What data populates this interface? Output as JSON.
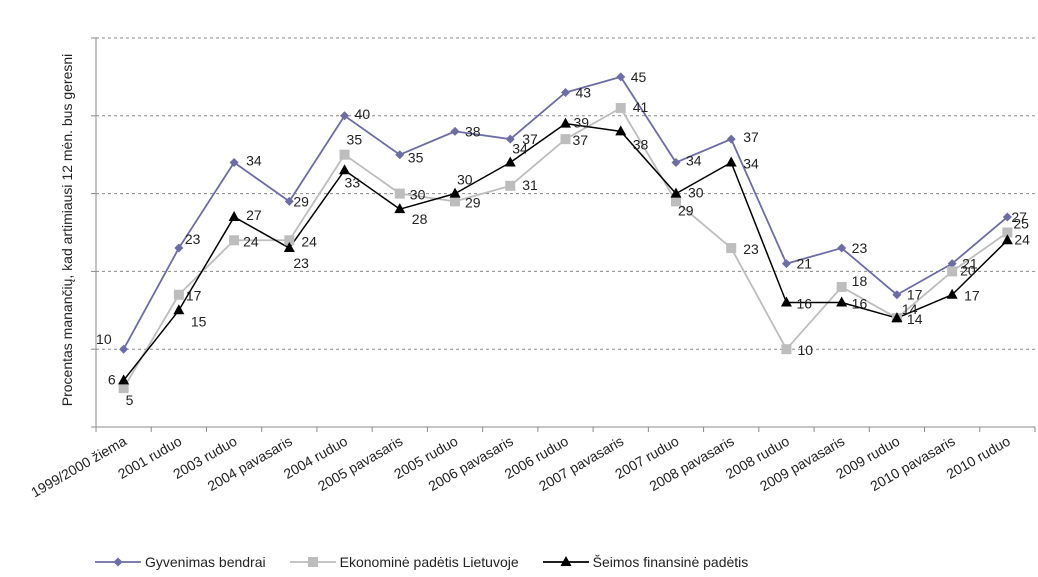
{
  "chart_data": {
    "type": "line",
    "ylabel": "Procentas manančių, kad artimiausi 12 mėn. bus geresni",
    "xlabel": "",
    "title": "",
    "ylim": [
      0,
      50
    ],
    "y_gridlines": [
      0,
      10,
      20,
      30,
      40,
      50
    ],
    "y_tick_labels_shown": false,
    "grid": "dashed horizontal",
    "legend_position": "bottom",
    "categories": [
      "1999/2000 žiema",
      "2001 ruduo",
      "2003 ruduo",
      "2004 pavasaris",
      "2004 ruduo",
      "2005 pavasaris",
      "2005 ruduo",
      "2006 pavasaris",
      "2006 ruduo",
      "2007 pavasaris",
      "2007 ruduo",
      "2008 pavasaris",
      "2008 ruduo",
      "2009 pavasaris",
      "2009 ruduo",
      "2010 pavasaris",
      "2010 ruduo"
    ],
    "series": [
      {
        "name": "Gyvenimas bendrai",
        "color": "#6c6ca6",
        "marker": "diamond",
        "values": [
          10,
          23,
          34,
          29,
          40,
          35,
          38,
          37,
          43,
          45,
          34,
          37,
          21,
          23,
          17,
          21,
          27
        ]
      },
      {
        "name": "Ekonominė padėtis Lietuvoje",
        "color": "#bdbdbd",
        "marker": "square",
        "values": [
          5,
          17,
          24,
          24,
          35,
          30,
          29,
          31,
          37,
          41,
          29,
          23,
          10,
          18,
          14,
          20,
          25
        ]
      },
      {
        "name": "Šeimos finansinė padėtis",
        "color": "#000000",
        "marker": "triangle",
        "values": [
          6,
          15,
          27,
          23,
          33,
          28,
          30,
          34,
          39,
          38,
          30,
          34,
          16,
          16,
          14,
          17,
          24
        ]
      }
    ]
  }
}
